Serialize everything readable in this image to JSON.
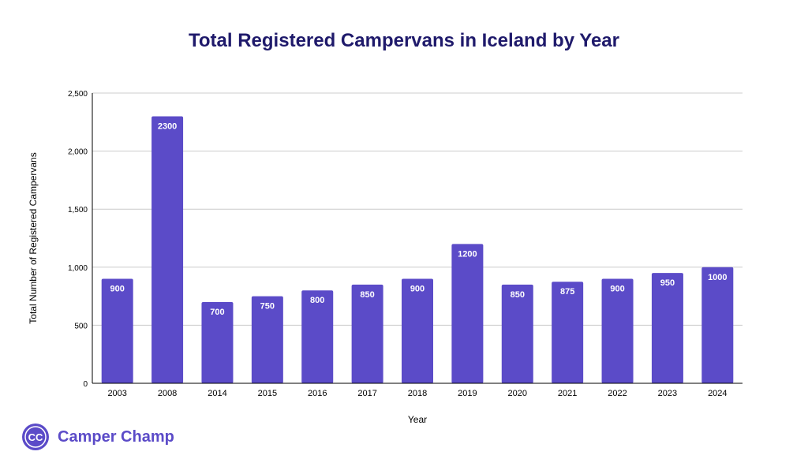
{
  "chart_data": {
    "type": "bar",
    "title": "Total Registered Campervans in Iceland by Year",
    "xlabel": "Year",
    "ylabel": "Total Number of Registered Campervans",
    "categories": [
      "2003",
      "2008",
      "2014",
      "2015",
      "2016",
      "2017",
      "2018",
      "2019",
      "2020",
      "2021",
      "2022",
      "2023",
      "2024"
    ],
    "values": [
      900,
      2300,
      700,
      750,
      800,
      850,
      900,
      1200,
      850,
      875,
      900,
      950,
      1000
    ],
    "ylim": [
      0,
      2500
    ],
    "yticks": [
      0,
      500,
      1000,
      1500,
      2000,
      2500
    ],
    "ytick_labels": [
      "0",
      "500",
      "1,000",
      "1,500",
      "2,000",
      "2,500"
    ],
    "grid": true,
    "bar_color": "#5b4bc8",
    "title_color": "#1f1a6b"
  },
  "brand": {
    "name": "Camper Champ",
    "logo_text": "CC",
    "logo_icon": "camper-champ-logo-icon",
    "color": "#5b4bc8"
  }
}
